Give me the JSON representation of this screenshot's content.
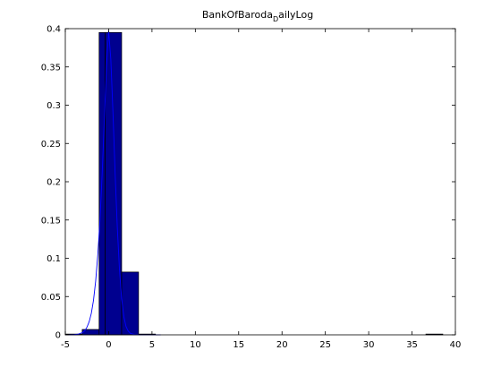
{
  "chart_data": {
    "type": "bar",
    "title": {
      "main": "BankOfBaroda",
      "subscript": "D",
      "tail": "ailyLog"
    },
    "xlabel": "",
    "ylabel": "",
    "xlim": [
      -5,
      40
    ],
    "ylim": [
      0,
      0.4
    ],
    "x_ticks": [
      "-5",
      "0",
      "5",
      "10",
      "15",
      "20",
      "25",
      "30",
      "35",
      "40"
    ],
    "x_tick_values": [
      -5,
      0,
      5,
      10,
      15,
      20,
      25,
      30,
      35,
      40
    ],
    "y_ticks": [
      "0",
      "0.05",
      "0.1",
      "0.15",
      "0.2",
      "0.25",
      "0.3",
      "0.35",
      "0.4"
    ],
    "y_tick_values": [
      0,
      0.05,
      0.1,
      0.15,
      0.2,
      0.25,
      0.3,
      0.35,
      0.4
    ],
    "grid": false,
    "histogram": {
      "bin_edges": [
        -5,
        -3.05,
        -1.1,
        -0.4,
        1.5,
        3.45,
        5.4,
        36.6,
        38.55
      ],
      "bins": [
        {
          "from": -5,
          "to": -3.05,
          "value": 0.001
        },
        {
          "from": -3.05,
          "to": -1.1,
          "value": 0.007
        },
        {
          "from": -1.1,
          "to": -0.4,
          "value": 0.395
        },
        {
          "from": -0.4,
          "to": 1.5,
          "value": 0.395
        },
        {
          "from": 1.5,
          "to": 3.45,
          "value": 0.082
        },
        {
          "from": 3.45,
          "to": 5.4,
          "value": 0.001
        },
        {
          "from": 36.6,
          "to": 38.55,
          "value": 0.001
        }
      ],
      "bar_color": "#00008f",
      "edge_color": "#000000"
    },
    "fit_curve": {
      "type": "normal-pdf",
      "color": "#0000ff",
      "x": [
        -5,
        -4.5,
        -4,
        -3.5,
        -3,
        -2.75,
        -2.5,
        -2.25,
        -2,
        -1.75,
        -1.5,
        -1.25,
        -1,
        -0.75,
        -0.5,
        -0.25,
        0,
        0.25,
        0.5,
        0.75,
        1,
        1.25,
        1.5,
        1.75,
        2,
        2.25,
        2.5,
        3,
        3.5,
        4,
        5,
        6
      ],
      "y": [
        0.0,
        0.0001,
        0.0003,
        0.001,
        0.003,
        0.0055,
        0.01,
        0.017,
        0.028,
        0.045,
        0.07,
        0.105,
        0.15,
        0.21,
        0.28,
        0.35,
        0.397,
        0.36,
        0.29,
        0.21,
        0.14,
        0.085,
        0.047,
        0.024,
        0.011,
        0.005,
        0.002,
        0.0004,
        0.0001,
        0.0,
        0.0,
        0.0
      ]
    }
  }
}
